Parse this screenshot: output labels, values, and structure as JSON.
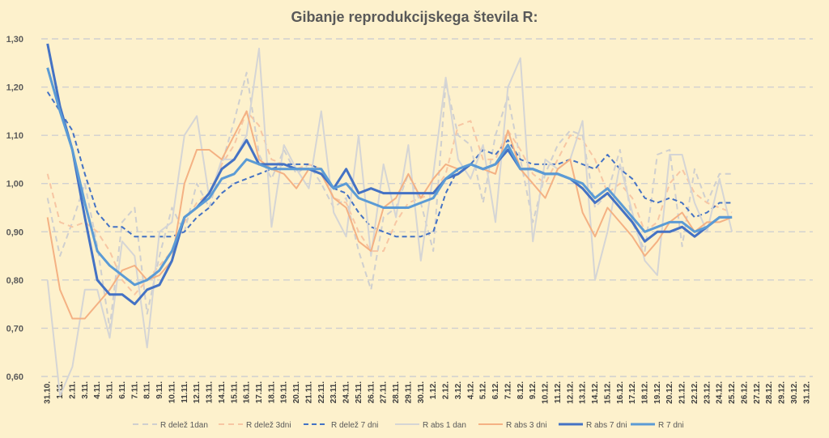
{
  "chart_data": {
    "type": "line",
    "title": "Gibanje reprodukcijskega števila R:",
    "ylim": [
      0.6,
      1.3
    ],
    "yticks": [
      "0,60",
      "0,70",
      "0,80",
      "0,90",
      "1,00",
      "1,10",
      "1,20",
      "1,30"
    ],
    "grid": "horizontal dashed",
    "legend_position": "bottom",
    "categories": [
      "31.10.",
      "1.11.",
      "2.11.",
      "3.11.",
      "4.11.",
      "5.11.",
      "6.11.",
      "7.11.",
      "8.11.",
      "9.11.",
      "10.11.",
      "11.11.",
      "12.11.",
      "13.11.",
      "14.11.",
      "15.11.",
      "16.11.",
      "17.11.",
      "18.11.",
      "19.11.",
      "20.11.",
      "21.11.",
      "22.11.",
      "23.11.",
      "24.11.",
      "25.11.",
      "26.11.",
      "27.11.",
      "28.11.",
      "29.11.",
      "30.11.",
      "1.12.",
      "2.12.",
      "3.12.",
      "4.12.",
      "5.12.",
      "6.12.",
      "7.12.",
      "8.12.",
      "9.12.",
      "10.12.",
      "11.12.",
      "12.12.",
      "13.12.",
      "14.12.",
      "15.12.",
      "16.12.",
      "17.12.",
      "18.12.",
      "19.12.",
      "20.12.",
      "21.12.",
      "22.12.",
      "23.12.",
      "24.12.",
      "25.12.",
      "26.12.",
      "27.12.",
      "28.12.",
      "29.12.",
      "30.12.",
      "31.12."
    ],
    "series": [
      {
        "name": "R delež 1dan",
        "color": "#cfcfcf",
        "dash": "7,5",
        "width": 2,
        "values": [
          0.97,
          0.85,
          0.92,
          1.0,
          0.87,
          0.7,
          0.92,
          0.95,
          0.73,
          0.85,
          0.95,
          0.9,
          1.0,
          0.95,
          1.04,
          1.13,
          1.23,
          1.06,
          1.01,
          1.07,
          1.02,
          1.04,
          1.0,
          0.95,
          0.97,
          0.86,
          0.78,
          0.93,
          0.95,
          1.02,
          0.96,
          0.86,
          1.21,
          1.1,
          1.08,
          0.96,
          1.1,
          1.18,
          1.05,
          0.92,
          1.02,
          1.08,
          1.11,
          1.1,
          0.95,
          0.98,
          1.07,
          0.92,
          0.86,
          1.06,
          1.07,
          0.87,
          1.03,
          0.96,
          1.02,
          1.02,
          null,
          null,
          null,
          null,
          null,
          null
        ]
      },
      {
        "name": "R delež 3dni",
        "color": "#f7c6a3",
        "dash": "7,5",
        "width": 2,
        "values": [
          1.02,
          0.92,
          0.91,
          0.92,
          0.9,
          0.86,
          0.8,
          0.77,
          0.8,
          0.83,
          0.86,
          0.92,
          0.96,
          0.98,
          1.04,
          1.08,
          1.15,
          1.12,
          1.05,
          1.04,
          1.03,
          1.04,
          1.03,
          0.97,
          0.96,
          0.9,
          0.86,
          0.86,
          0.92,
          0.96,
          0.97,
          0.98,
          1.02,
          1.12,
          1.13,
          1.05,
          1.05,
          1.11,
          1.07,
          1.02,
          1.0,
          1.05,
          1.1,
          1.09,
          1.05,
          0.98,
          1.0,
          0.97,
          0.9,
          0.92,
          1.0,
          1.03,
          0.98,
          0.96,
          0.95,
          0.94,
          null,
          null,
          null,
          null,
          null,
          null
        ]
      },
      {
        "name": "R delež 7 dni",
        "color": "#4472c4",
        "dash": "6,4",
        "width": 2,
        "values": [
          1.19,
          1.15,
          1.11,
          1.02,
          0.94,
          0.91,
          0.91,
          0.89,
          0.89,
          0.89,
          0.89,
          0.9,
          0.93,
          0.95,
          0.98,
          1.0,
          1.01,
          1.02,
          1.03,
          1.04,
          1.04,
          1.04,
          1.03,
          0.99,
          0.98,
          0.94,
          0.91,
          0.9,
          0.89,
          0.89,
          0.89,
          0.9,
          0.98,
          1.03,
          1.04,
          1.07,
          1.06,
          1.09,
          1.05,
          1.04,
          1.04,
          1.04,
          1.05,
          1.04,
          1.03,
          1.06,
          1.03,
          1.01,
          0.97,
          0.96,
          0.97,
          0.96,
          0.93,
          0.94,
          0.96,
          0.96,
          null,
          null,
          null,
          null,
          null,
          null
        ]
      },
      {
        "name": "R abs 1 dan",
        "color": "#d5d5d5",
        "dash": "",
        "width": 2,
        "values": [
          0.8,
          0.56,
          0.62,
          0.78,
          0.78,
          0.68,
          0.88,
          0.85,
          0.66,
          0.9,
          0.92,
          1.1,
          1.14,
          0.97,
          1.05,
          1.05,
          1.1,
          1.28,
          0.91,
          1.08,
          1.03,
          0.99,
          1.15,
          0.94,
          0.89,
          1.1,
          0.85,
          1.04,
          0.93,
          1.08,
          0.84,
          1.02,
          1.22,
          1.05,
          1.01,
          1.08,
          0.92,
          1.2,
          1.26,
          0.88,
          1.05,
          1.03,
          1.05,
          1.13,
          0.8,
          0.9,
          1.04,
          0.94,
          0.84,
          0.81,
          1.06,
          1.06,
          0.96,
          0.9,
          1.01,
          0.9,
          null,
          null,
          null,
          null,
          null,
          null
        ]
      },
      {
        "name": "R abs 3 dni",
        "color": "#f4b183",
        "dash": "",
        "width": 2,
        "values": [
          0.93,
          0.78,
          0.72,
          0.72,
          0.75,
          0.78,
          0.82,
          0.83,
          0.8,
          0.81,
          0.84,
          1.0,
          1.07,
          1.07,
          1.05,
          1.1,
          1.15,
          1.05,
          1.03,
          1.02,
          0.99,
          1.03,
          1.02,
          0.97,
          0.95,
          0.88,
          0.86,
          0.95,
          0.97,
          1.02,
          0.97,
          1.01,
          1.04,
          1.03,
          1.04,
          1.03,
          1.02,
          1.11,
          1.03,
          1.0,
          0.97,
          1.03,
          1.05,
          0.94,
          0.89,
          0.95,
          0.92,
          0.89,
          0.85,
          0.88,
          0.92,
          0.94,
          0.9,
          0.92,
          0.92,
          0.93,
          null,
          null,
          null,
          null,
          null,
          null
        ]
      },
      {
        "name": "R abs 7 dni",
        "color": "#4472c4",
        "dash": "",
        "width": 3,
        "values": [
          1.29,
          1.16,
          1.07,
          0.93,
          0.8,
          0.77,
          0.77,
          0.75,
          0.78,
          0.79,
          0.84,
          0.93,
          0.95,
          0.98,
          1.03,
          1.05,
          1.09,
          1.04,
          1.04,
          1.04,
          1.03,
          1.03,
          1.02,
          0.99,
          1.03,
          0.98,
          0.99,
          0.98,
          0.98,
          0.98,
          0.98,
          0.98,
          1.01,
          1.02,
          1.04,
          1.03,
          1.04,
          1.07,
          1.03,
          1.03,
          1.02,
          1.02,
          1.01,
          0.99,
          0.96,
          0.98,
          0.95,
          0.92,
          0.88,
          0.9,
          0.9,
          0.91,
          0.89,
          0.91,
          0.93,
          0.93,
          null,
          null,
          null,
          null,
          null,
          null
        ]
      },
      {
        "name": "R 7 dni",
        "color": "#5b9bd5",
        "dash": "",
        "width": 3,
        "values": [
          1.24,
          1.15,
          1.07,
          0.96,
          0.86,
          0.83,
          0.81,
          0.79,
          0.8,
          0.82,
          0.86,
          0.93,
          0.95,
          0.97,
          1.01,
          1.02,
          1.05,
          1.04,
          1.03,
          1.03,
          1.03,
          1.03,
          1.03,
          0.99,
          1.0,
          0.97,
          0.96,
          0.95,
          0.95,
          0.95,
          0.96,
          0.97,
          1.01,
          1.03,
          1.04,
          1.03,
          1.04,
          1.08,
          1.03,
          1.03,
          1.02,
          1.02,
          1.01,
          1.0,
          0.97,
          0.99,
          0.96,
          0.93,
          0.9,
          0.91,
          0.92,
          0.92,
          0.9,
          0.91,
          0.93,
          0.93,
          null,
          null,
          null,
          null,
          null,
          null
        ]
      }
    ]
  }
}
